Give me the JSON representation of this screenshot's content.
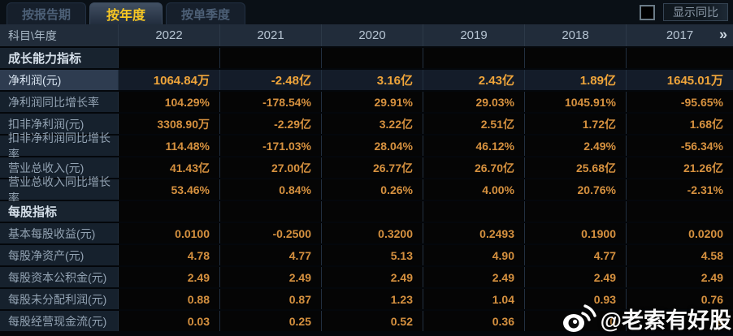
{
  "tabs": [
    {
      "name": "tab-by-report-period",
      "label": "按报告期",
      "active": false
    },
    {
      "name": "tab-by-year",
      "label": "按年度",
      "active": true
    },
    {
      "name": "tab-by-quarter",
      "label": "按单季度",
      "active": false
    }
  ],
  "controls": {
    "show_yoy_label": "显示同比",
    "checkbox_checked": false
  },
  "table": {
    "corner_label": "科目\\年度",
    "years": [
      "2022",
      "2021",
      "2020",
      "2019",
      "2018",
      "2017"
    ],
    "more_columns_icon": "»",
    "rows": [
      {
        "type": "section",
        "label": "成长能力指标",
        "values": [
          "",
          "",
          "",
          "",
          "",
          ""
        ]
      },
      {
        "type": "data",
        "highlight": true,
        "label": "净利润(元)",
        "values": [
          "1064.84万",
          "-2.48亿",
          "3.16亿",
          "2.43亿",
          "1.89亿",
          "1645.01万"
        ]
      },
      {
        "type": "data",
        "highlight": false,
        "label": "净利润同比增长率",
        "values": [
          "104.29%",
          "-178.54%",
          "29.91%",
          "29.03%",
          "1045.91%",
          "-95.65%"
        ]
      },
      {
        "type": "data",
        "highlight": false,
        "label": "扣非净利润(元)",
        "values": [
          "3308.90万",
          "-2.29亿",
          "3.22亿",
          "2.51亿",
          "1.72亿",
          "1.68亿"
        ]
      },
      {
        "type": "data",
        "highlight": false,
        "label": "扣非净利润同比增长率",
        "values": [
          "114.48%",
          "-171.03%",
          "28.04%",
          "46.12%",
          "2.49%",
          "-56.34%"
        ]
      },
      {
        "type": "data",
        "highlight": false,
        "label": "营业总收入(元)",
        "values": [
          "41.43亿",
          "27.00亿",
          "26.77亿",
          "26.70亿",
          "25.68亿",
          "21.26亿"
        ]
      },
      {
        "type": "data",
        "highlight": false,
        "label": "营业总收入同比增长率",
        "values": [
          "53.46%",
          "0.84%",
          "0.26%",
          "4.00%",
          "20.76%",
          "-2.31%"
        ]
      },
      {
        "type": "section",
        "label": "每股指标",
        "values": [
          "",
          "",
          "",
          "",
          "",
          ""
        ]
      },
      {
        "type": "data",
        "highlight": false,
        "label": "基本每股收益(元)",
        "values": [
          "0.0100",
          "-0.2500",
          "0.3200",
          "0.2493",
          "0.1900",
          "0.0200"
        ]
      },
      {
        "type": "data",
        "highlight": false,
        "label": "每股净资产(元)",
        "values": [
          "4.78",
          "4.77",
          "5.13",
          "4.90",
          "4.77",
          "4.58"
        ]
      },
      {
        "type": "data",
        "highlight": false,
        "label": "每股资本公积金(元)",
        "values": [
          "2.49",
          "2.49",
          "2.49",
          "2.49",
          "2.49",
          "2.49"
        ]
      },
      {
        "type": "data",
        "highlight": false,
        "label": "每股未分配利润(元)",
        "values": [
          "0.88",
          "0.87",
          "1.23",
          "1.04",
          "0.93",
          "0.76"
        ]
      },
      {
        "type": "data",
        "highlight": false,
        "label": "每股经营现金流(元)",
        "values": [
          "0.03",
          "0.25",
          "0.52",
          "0.36",
          "0",
          "9"
        ]
      }
    ]
  },
  "watermark": {
    "icon": "weibo-icon",
    "handle": "@老索有好股"
  },
  "colors": {
    "active_tab_text": "#f7c723",
    "value_orange": "#d6913f",
    "highlight_value_orange": "#f0a53a",
    "header_bg": "#212c3a",
    "label_col_bg": "#16212d",
    "highlight_row_label_bg": "#2e3c50",
    "watermark_text": "#fafafa"
  }
}
